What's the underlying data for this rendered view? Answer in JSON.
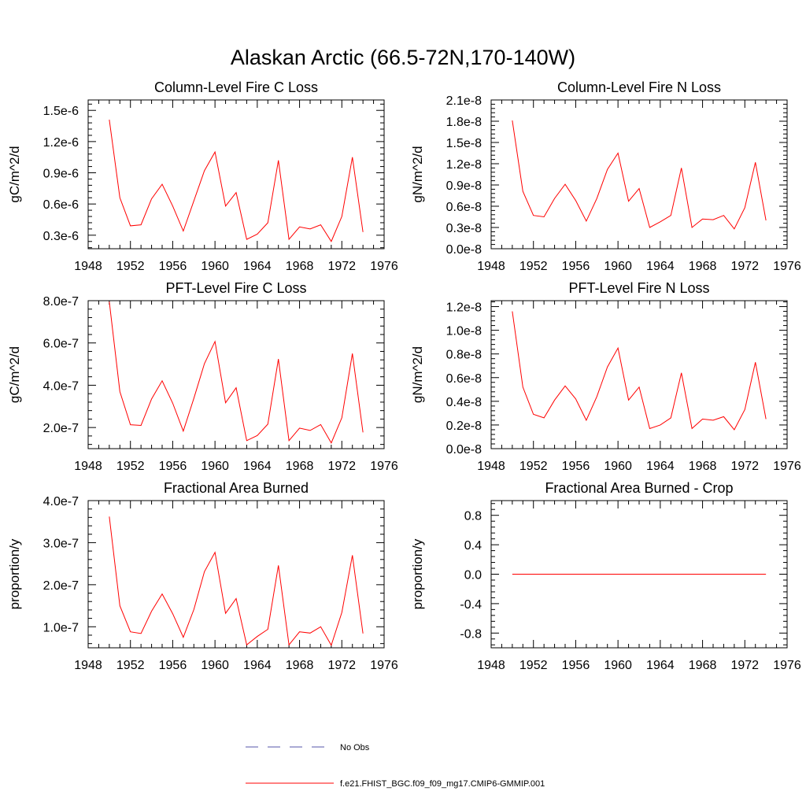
{
  "page": {
    "title": "Alaskan Arctic (66.5-72N,170-140W)"
  },
  "legend": {
    "items": [
      {
        "label": "No Obs",
        "style": "dashed",
        "color": "#5555aa"
      },
      {
        "label": "f.e21.FHIST_BGC.f09_f09_mg17.CMIP6-GMMIP.001",
        "style": "solid",
        "color": "#ff0000"
      }
    ]
  },
  "colors": {
    "series": "#ff0000",
    "obs": "#5555aa",
    "axis": "#000000"
  },
  "chart_data": [
    {
      "id": "col-c",
      "type": "line",
      "title": "Column-Level Fire C Loss",
      "ylabel": "gC/m^2/d",
      "xlabel": "",
      "xlim": [
        1948,
        1976
      ],
      "xticks": [
        1948,
        1952,
        1956,
        1960,
        1964,
        1968,
        1972,
        1976
      ],
      "ylim": [
        1.7e-07,
        1.6e-06
      ],
      "yticks": [
        3e-07,
        6e-07,
        9e-07,
        1.2e-06,
        1.5e-06
      ],
      "yticklabels": [
        "0.3e-6",
        "0.6e-6",
        "0.9e-6",
        "1.2e-6",
        "1.5e-6"
      ],
      "x": [
        1950,
        1951,
        1952,
        1953,
        1954,
        1955,
        1956,
        1957,
        1958,
        1959,
        1960,
        1961,
        1962,
        1963,
        1964,
        1965,
        1966,
        1967,
        1968,
        1969,
        1970,
        1971,
        1972,
        1973,
        1974
      ],
      "series": [
        {
          "name": "f.e21.FHIST_BGC.f09_f09_mg17.CMIP6-GMMIP.001",
          "values": [
            1.41e-06,
            6.6e-07,
            3.9e-07,
            4e-07,
            6.5e-07,
            7.9e-07,
            5.8e-07,
            3.4e-07,
            6.3e-07,
            9.2e-07,
            1.1e-06,
            5.8e-07,
            7.1e-07,
            2.6e-07,
            3.1e-07,
            4.2e-07,
            1.02e-06,
            2.6e-07,
            3.8e-07,
            3.6e-07,
            4e-07,
            2.4e-07,
            4.8e-07,
            1.05e-06,
            3.3e-07
          ]
        }
      ]
    },
    {
      "id": "col-n",
      "type": "line",
      "title": "Column-Level Fire N Loss",
      "ylabel": "gN/m^2/d",
      "xlabel": "",
      "xlim": [
        1948,
        1976
      ],
      "xticks": [
        1948,
        1952,
        1956,
        1960,
        1964,
        1968,
        1972,
        1976
      ],
      "ylim": [
        0,
        2.1e-08
      ],
      "yticks": [
        0,
        3e-09,
        6e-09,
        9e-09,
        1.2e-08,
        1.5e-08,
        1.8e-08,
        2.1e-08
      ],
      "yticklabels": [
        "0.0e-8",
        "0.3e-8",
        "0.6e-8",
        "0.9e-8",
        "1.2e-8",
        "1.5e-8",
        "1.8e-8",
        "2.1e-8"
      ],
      "x": [
        1950,
        1951,
        1952,
        1953,
        1954,
        1955,
        1956,
        1957,
        1958,
        1959,
        1960,
        1961,
        1962,
        1963,
        1964,
        1965,
        1966,
        1967,
        1968,
        1969,
        1970,
        1971,
        1972,
        1973,
        1974
      ],
      "series": [
        {
          "name": "f.e21.FHIST_BGC.f09_f09_mg17.CMIP6-GMMIP.001",
          "values": [
            1.81e-08,
            8.1e-09,
            4.7e-09,
            4.5e-09,
            7.1e-09,
            9.1e-09,
            6.8e-09,
            3.9e-09,
            7.1e-09,
            1.12e-08,
            1.35e-08,
            6.7e-09,
            8.5e-09,
            3e-09,
            3.8e-09,
            4.7e-09,
            1.14e-08,
            3e-09,
            4.2e-09,
            4.1e-09,
            4.7e-09,
            2.8e-09,
            5.8e-09,
            1.22e-08,
            4e-09
          ]
        }
      ]
    },
    {
      "id": "pft-c",
      "type": "line",
      "title": "PFT-Level Fire C Loss",
      "ylabel": "gC/m^2/d",
      "xlabel": "",
      "xlim": [
        1948,
        1976
      ],
      "xticks": [
        1948,
        1952,
        1956,
        1960,
        1964,
        1968,
        1972,
        1976
      ],
      "ylim": [
        1e-07,
        8e-07
      ],
      "yticks": [
        2e-07,
        4e-07,
        6e-07,
        8e-07
      ],
      "yticklabels": [
        "2.0e-7",
        "4.0e-7",
        "6.0e-7",
        "8.0e-7"
      ],
      "x": [
        1950,
        1951,
        1952,
        1953,
        1954,
        1955,
        1956,
        1957,
        1958,
        1959,
        1960,
        1961,
        1962,
        1963,
        1964,
        1965,
        1966,
        1967,
        1968,
        1969,
        1970,
        1971,
        1972,
        1973,
        1974
      ],
      "series": [
        {
          "name": "f.e21.FHIST_BGC.f09_f09_mg17.CMIP6-GMMIP.001",
          "values": [
            7.95e-07,
            3.7e-07,
            2.13e-07,
            2.1e-07,
            3.35e-07,
            4.21e-07,
            3.15e-07,
            1.83e-07,
            3.38e-07,
            5.02e-07,
            6.07e-07,
            3.17e-07,
            3.88e-07,
            1.38e-07,
            1.62e-07,
            2.16e-07,
            5.24e-07,
            1.38e-07,
            1.97e-07,
            1.86e-07,
            2.14e-07,
            1.27e-07,
            2.46e-07,
            5.5e-07,
            1.77e-07
          ]
        }
      ]
    },
    {
      "id": "pft-n",
      "type": "line",
      "title": "PFT-Level Fire N Loss",
      "ylabel": "gN/m^2/d",
      "xlabel": "",
      "xlim": [
        1948,
        1976
      ],
      "xticks": [
        1948,
        1952,
        1956,
        1960,
        1964,
        1968,
        1972,
        1976
      ],
      "ylim": [
        0,
        1.25e-08
      ],
      "yticks": [
        0,
        2e-09,
        4e-09,
        6e-09,
        8e-09,
        1e-08,
        1.2e-08
      ],
      "yticklabels": [
        "0.0e-8",
        "0.2e-8",
        "0.4e-8",
        "0.6e-8",
        "0.8e-8",
        "1.0e-8",
        "1.2e-8"
      ],
      "x": [
        1950,
        1951,
        1952,
        1953,
        1954,
        1955,
        1956,
        1957,
        1958,
        1959,
        1960,
        1961,
        1962,
        1963,
        1964,
        1965,
        1966,
        1967,
        1968,
        1969,
        1970,
        1971,
        1972,
        1973,
        1974
      ],
      "series": [
        {
          "name": "f.e21.FHIST_BGC.f09_f09_mg17.CMIP6-GMMIP.001",
          "values": [
            1.16e-08,
            5.2e-09,
            2.9e-09,
            2.6e-09,
            4.1e-09,
            5.3e-09,
            4.2e-09,
            2.4e-09,
            4.4e-09,
            6.9e-09,
            8.5e-09,
            4.1e-09,
            5.2e-09,
            1.7e-09,
            2e-09,
            2.6e-09,
            6.4e-09,
            1.7e-09,
            2.5e-09,
            2.4e-09,
            2.7e-09,
            1.6e-09,
            3.3e-09,
            7.3e-09,
            2.5e-09
          ]
        }
      ]
    },
    {
      "id": "fab",
      "type": "line",
      "title": "Fractional Area Burned",
      "ylabel": "proportion/y",
      "xlabel": "",
      "xlim": [
        1948,
        1976
      ],
      "xticks": [
        1948,
        1952,
        1956,
        1960,
        1964,
        1968,
        1972,
        1976
      ],
      "ylim": [
        5e-08,
        4e-07
      ],
      "yticks": [
        1e-07,
        2e-07,
        3e-07,
        4e-07
      ],
      "yticklabels": [
        "1.0e-7",
        "2.0e-7",
        "3.0e-7",
        "4.0e-7"
      ],
      "x": [
        1950,
        1951,
        1952,
        1953,
        1954,
        1955,
        1956,
        1957,
        1958,
        1959,
        1960,
        1961,
        1962,
        1963,
        1964,
        1965,
        1966,
        1967,
        1968,
        1969,
        1970,
        1971,
        1972,
        1973,
        1974
      ],
      "series": [
        {
          "name": "f.e21.FHIST_BGC.f09_f09_mg17.CMIP6-GMMIP.001",
          "values": [
            3.62e-07,
            1.5e-07,
            8.8e-08,
            8.4e-08,
            1.37e-07,
            1.78e-07,
            1.31e-07,
            7.5e-08,
            1.41e-07,
            2.31e-07,
            2.77e-07,
            1.32e-07,
            1.67e-07,
            5.7e-08,
            7.7e-08,
            9.4e-08,
            2.46e-07,
            5.7e-08,
            8.8e-08,
            8.5e-08,
            1e-07,
            5.6e-08,
            1.34e-07,
            2.7e-07,
            8.4e-08
          ]
        }
      ]
    },
    {
      "id": "fab-crop",
      "type": "line",
      "title": "Fractional Area Burned - Crop",
      "ylabel": "proportion/y",
      "xlabel": "",
      "xlim": [
        1948,
        1976
      ],
      "xticks": [
        1948,
        1952,
        1956,
        1960,
        1964,
        1968,
        1972,
        1976
      ],
      "ylim": [
        -1.0,
        1.0
      ],
      "yticks": [
        -0.8,
        -0.4,
        0.0,
        0.4,
        0.8
      ],
      "yticklabels": [
        "-0.8",
        "-0.4",
        "0.0",
        "0.4",
        "0.8"
      ],
      "x": [
        1950,
        1951,
        1952,
        1953,
        1954,
        1955,
        1956,
        1957,
        1958,
        1959,
        1960,
        1961,
        1962,
        1963,
        1964,
        1965,
        1966,
        1967,
        1968,
        1969,
        1970,
        1971,
        1972,
        1973,
        1974
      ],
      "series": [
        {
          "name": "f.e21.FHIST_BGC.f09_f09_mg17.CMIP6-GMMIP.001",
          "values": [
            0,
            0,
            0,
            0,
            0,
            0,
            0,
            0,
            0,
            0,
            0,
            0,
            0,
            0,
            0,
            0,
            0,
            0,
            0,
            0,
            0,
            0,
            0,
            0,
            0
          ]
        }
      ]
    }
  ]
}
